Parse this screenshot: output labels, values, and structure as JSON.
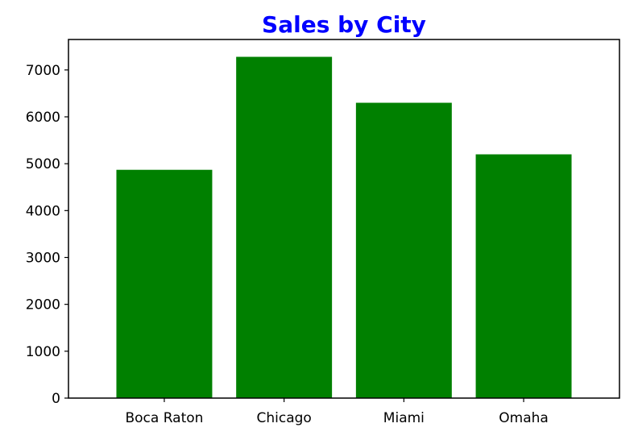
{
  "chart_data": {
    "type": "bar",
    "title": "Sales by City",
    "xlabel": "",
    "ylabel": "",
    "categories": [
      "Boca Raton",
      "Chicago",
      "Miami",
      "Omaha"
    ],
    "values": [
      4870,
      7280,
      6300,
      5200
    ],
    "ylim": [
      0,
      7650
    ],
    "yticks": [
      0,
      1000,
      2000,
      3000,
      4000,
      5000,
      6000,
      7000
    ],
    "grid": false,
    "legend": "none",
    "colors": {
      "bar": "#008000",
      "title": "#0000ff",
      "axis": "#000000",
      "background": "#ffffff"
    }
  }
}
